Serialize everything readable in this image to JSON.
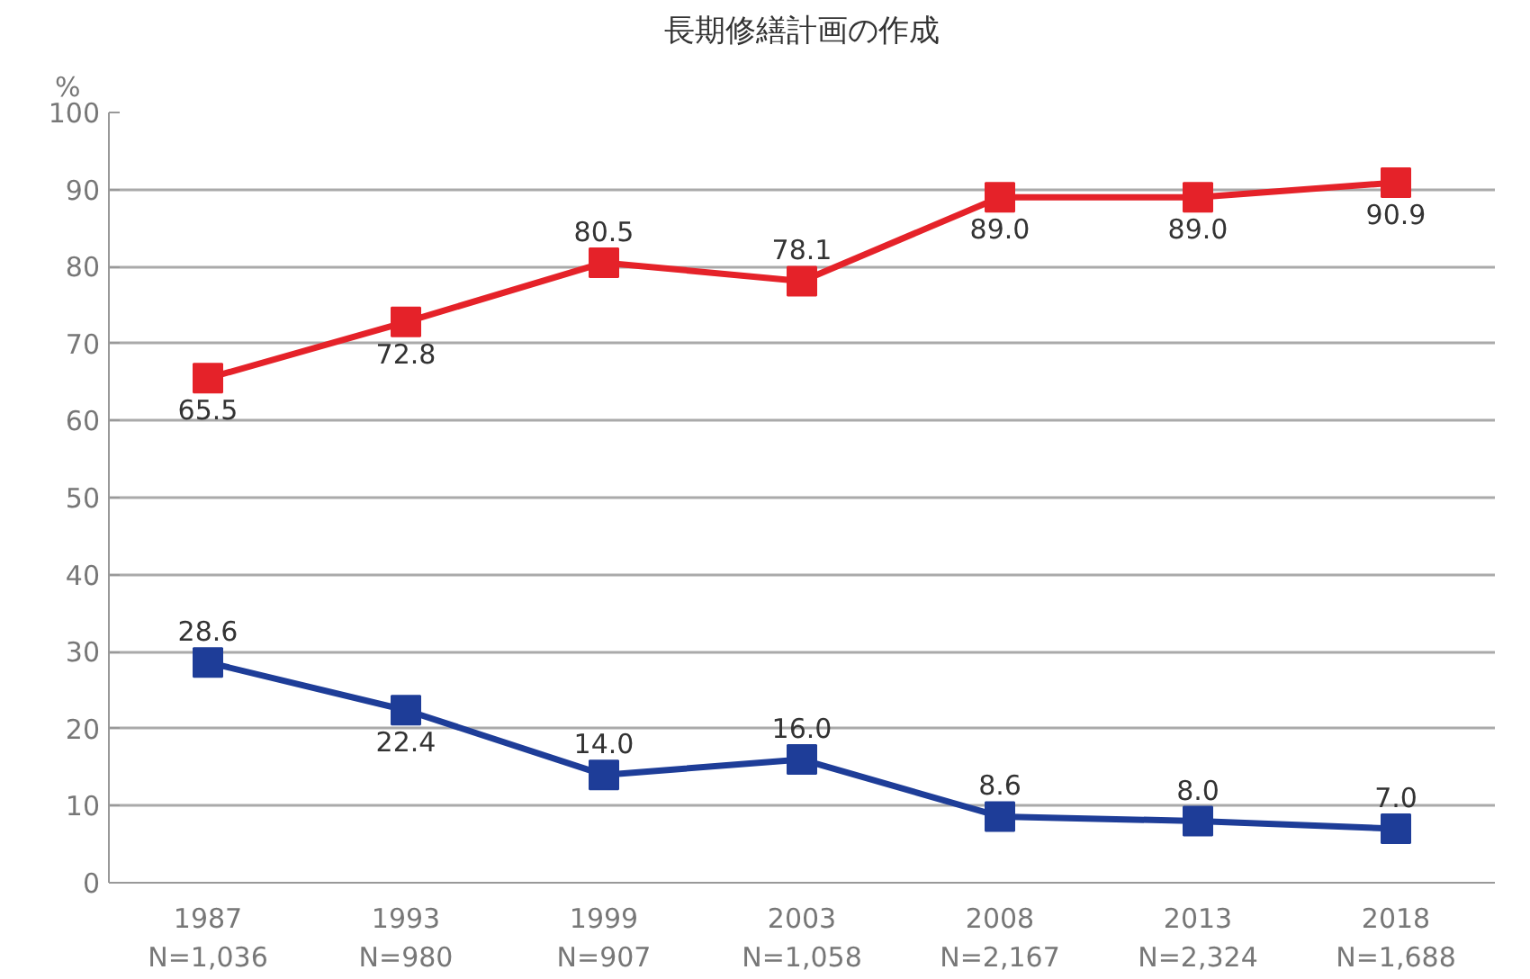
{
  "chart_data": {
    "type": "line",
    "title": "長期修繕計画の作成",
    "ylabel": "%",
    "categories": [
      "1987\nN=1,036",
      "1993\nN=980",
      "1999\nN=907",
      "2003\nN=1,058",
      "2008\nN=2,167",
      "2013\nN=2,324",
      "2018\nN=1,688"
    ],
    "series": [
      {
        "color": "#e52229",
        "values": [
          65.5,
          72.8,
          80.5,
          78.1,
          89.0,
          89.0,
          90.9
        ],
        "value_labels": [
          "65.5",
          "72.8",
          "80.5",
          "78.1",
          "89.0",
          "89.0",
          "90.9"
        ]
      },
      {
        "color": "#1e3d98",
        "values": [
          28.6,
          22.4,
          14.0,
          16.0,
          8.6,
          8.0,
          7.0
        ],
        "value_labels": [
          "28.6",
          "22.4",
          "14.0",
          "16.0",
          "8.6",
          "8.0",
          "7.0"
        ]
      }
    ],
    "ylim": [
      0,
      100
    ],
    "yticks": [
      0,
      10,
      20,
      30,
      40,
      50,
      60,
      70,
      80,
      90,
      100
    ],
    "grid": "y",
    "marker": "square",
    "line_style": "solid"
  }
}
